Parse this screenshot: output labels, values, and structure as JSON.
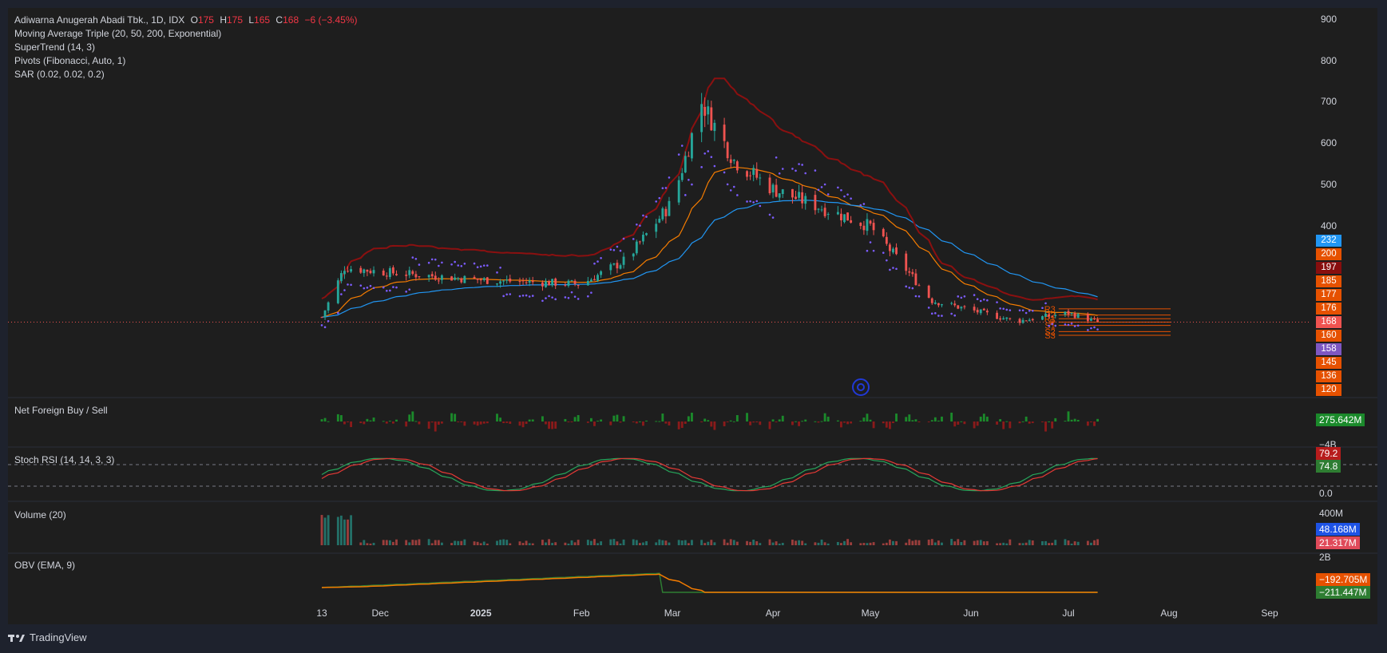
{
  "header": {
    "symbol": "Adiwarna Anugerah Abadi Tbk., 1D, IDX",
    "o_key": "O",
    "o_val": "175",
    "h_key": "H",
    "h_val": "175",
    "l_key": "L",
    "l_val": "165",
    "c_key": "C",
    "c_val": "168",
    "change": "−6 (−3.45%)"
  },
  "indicators": {
    "ma": "Moving Average Triple (20, 50, 200, Exponential)",
    "supertrend": "SuperTrend (14, 3)",
    "pivots": "Pivots (Fibonacci, Auto, 1)",
    "sar": "SAR (0.02, 0.02, 0.2)"
  },
  "panes": {
    "net_foreign": "Net Foreign Buy / Sell",
    "stoch": "Stoch RSI (14, 14, 3, 3)",
    "volume": "Volume (20)",
    "obv": "OBV (EMA, 9)"
  },
  "price_axis": [
    "900",
    "800",
    "700",
    "600",
    "500",
    "400"
  ],
  "price_tags": [
    {
      "label": "232",
      "color": "#2196f3"
    },
    {
      "label": "200",
      "color": "#e65100"
    },
    {
      "label": "197",
      "color": "#880e0e"
    },
    {
      "label": "185",
      "color": "#e65100"
    },
    {
      "label": "177",
      "color": "#e65100"
    },
    {
      "label": "176",
      "color": "#e65100"
    },
    {
      "label": "168",
      "color": "#ef5350"
    },
    {
      "label": "160",
      "color": "#e65100"
    },
    {
      "label": "158",
      "color": "#7e57c2"
    },
    {
      "label": "145",
      "color": "#e65100"
    },
    {
      "label": "136",
      "color": "#e65100"
    },
    {
      "label": "120",
      "color": "#e65100"
    }
  ],
  "pivot_labels": [
    "P",
    "R1",
    "R2",
    "R3",
    "S1",
    "S2",
    "S3"
  ],
  "nf_tag": {
    "label": "275.642M",
    "color": "#1b8a2b"
  },
  "nf_axis": "−4B",
  "stoch_tags": [
    {
      "label": "79.2",
      "color": "#b71c1c"
    },
    {
      "label": "74.8",
      "color": "#2e7d32"
    }
  ],
  "stoch_axis": "0.0",
  "vol_axis": "400M",
  "vol_tags": [
    {
      "label": "48.168M",
      "color": "#1e53e5"
    },
    {
      "label": "21.317M",
      "color": "#e04a5a"
    }
  ],
  "obv_axis": "2B",
  "obv_tags": [
    {
      "label": "−192.705M",
      "color": "#e65100"
    },
    {
      "label": "−211.447M",
      "color": "#2e7d32"
    }
  ],
  "months": [
    "13",
    "Dec",
    "2025",
    "Feb",
    "Mar",
    "Apr",
    "May",
    "Jun",
    "Jul",
    "Aug",
    "Sep"
  ],
  "brand": "TradingView",
  "chart_data": {
    "type": "candlestick",
    "title": "Adiwarna Anugerah Abadi Tbk., 1D, IDX",
    "y_axis": {
      "ticks": [
        400,
        500,
        600,
        700,
        800,
        900
      ]
    },
    "x_axis": {
      "ticks": [
        "13",
        "Dec",
        "2025",
        "Feb",
        "Mar",
        "Apr",
        "May",
        "Jun",
        "Jul",
        "Aug",
        "Sep"
      ]
    },
    "last_close": 168,
    "ema20_last": 177,
    "ema50_last": 197,
    "ema200_last": 232,
    "sar_last": 158,
    "pivots": {
      "R3": 200,
      "R2": 185,
      "R1": 176,
      "P": 168,
      "S1": 160,
      "S2": 145,
      "S3": 136
    },
    "stoch_rsi": {
      "k": 79.2,
      "d": 74.8
    },
    "volume": {
      "last": "21.317M",
      "ma20": "48.168M"
    },
    "obv": {
      "obv": "−211.447M",
      "ema": "−192.705M"
    },
    "net_foreign_last": "275.642M",
    "path_keypoints": [
      {
        "date": "2024-11-13",
        "close": 180
      },
      {
        "date": "2024-11-20",
        "close": 300
      },
      {
        "date": "2024-12-01",
        "close": 290
      },
      {
        "date": "2025-01-01",
        "close": 270
      },
      {
        "date": "2025-02-01",
        "close": 260
      },
      {
        "date": "2025-02-15",
        "close": 320
      },
      {
        "date": "2025-03-01",
        "close": 460
      },
      {
        "date": "2025-03-10",
        "close": 700
      },
      {
        "date": "2025-03-20",
        "close": 560
      },
      {
        "date": "2025-04-01",
        "close": 490
      },
      {
        "date": "2025-05-01",
        "close": 400
      },
      {
        "date": "2025-05-20",
        "close": 220
      },
      {
        "date": "2025-06-15",
        "close": 170
      },
      {
        "date": "2025-07-01",
        "close": 190
      },
      {
        "date": "2025-07-10",
        "close": 168
      }
    ]
  }
}
